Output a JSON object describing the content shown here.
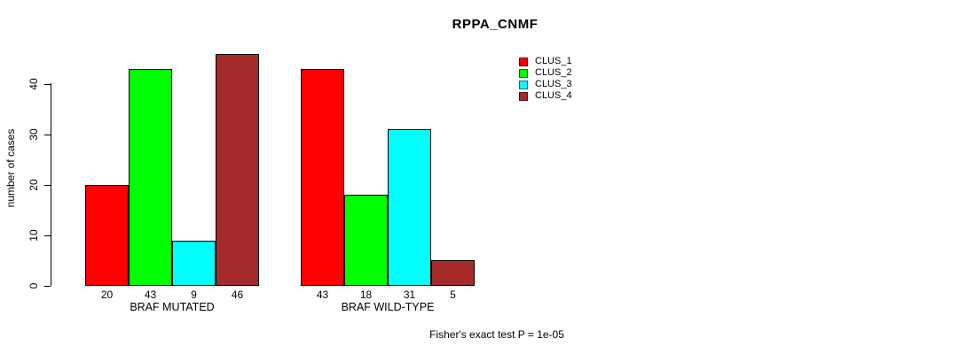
{
  "title": "RPPA_CNMF",
  "chart_data": {
    "type": "bar",
    "title": "RPPA_CNMF",
    "ylabel": "number of cases",
    "xlabel": "",
    "yticks": [
      0,
      10,
      20,
      30,
      40
    ],
    "ylim": [
      0,
      47
    ],
    "grid": false,
    "legend_position": "top-right",
    "groups": [
      {
        "label": "BRAF MUTATED",
        "values": [
          20,
          43,
          9,
          46
        ]
      },
      {
        "label": "BRAF WILD-TYPE",
        "values": [
          43,
          18,
          31,
          5
        ]
      }
    ],
    "series": [
      {
        "name": "CLUS_1",
        "color": "#FF0000",
        "values": [
          20,
          43
        ]
      },
      {
        "name": "CLUS_2",
        "color": "#00FF00",
        "values": [
          43,
          18
        ]
      },
      {
        "name": "CLUS_3",
        "color": "#00FFFF",
        "values": [
          9,
          31
        ]
      },
      {
        "name": "CLUS_4",
        "color": "#A52A2A",
        "values": [
          46,
          5
        ]
      }
    ],
    "legend": [
      {
        "label": "CLUS_1",
        "color": "#FF0000"
      },
      {
        "label": "CLUS_2",
        "color": "#00FF00"
      },
      {
        "label": "CLUS_3",
        "color": "#00FFFF"
      },
      {
        "label": "CLUS_4",
        "color": "#A52A2A"
      }
    ],
    "footnote": "Fisher's exact test P = 1e-05"
  },
  "colors": {
    "background": "#FFFFFF",
    "axis": "#000000",
    "text": "#000000"
  }
}
